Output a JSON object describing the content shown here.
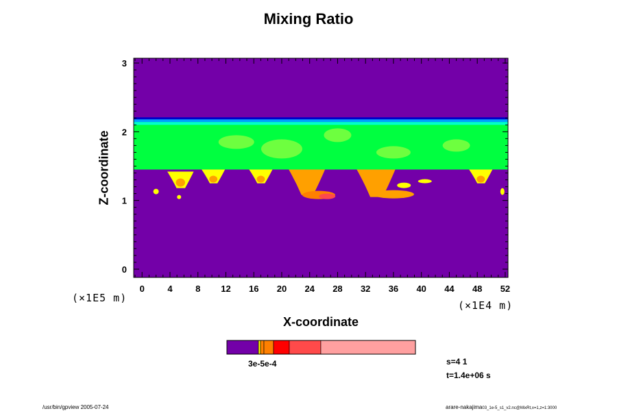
{
  "chart_data": {
    "type": "heatmap",
    "title": "Mixing Ratio",
    "xlabel": "X-coordinate",
    "ylabel": "Z-coordinate",
    "x_scale_note": "(×1E4 m)",
    "y_scale_note": "(×1E5 m)",
    "xlim": [
      -1.2,
      52.4
    ],
    "ylim": [
      -0.12,
      3.07
    ],
    "x_ticks": [
      0,
      4,
      8,
      12,
      16,
      20,
      24,
      28,
      32,
      36,
      40,
      44,
      48,
      52
    ],
    "y_ticks": [
      0,
      1,
      2,
      3
    ],
    "colorbar": {
      "label_text": "3e-5e-4",
      "colors": [
        "#7300a8",
        "#0000c8",
        "#00a0ff",
        "#00ff40",
        "#ffff00",
        "#ff8000",
        "#ff0000",
        "#ff4a4a",
        "#ffa0a0"
      ]
    },
    "fields": {
      "background": "#7300a8",
      "cloud_layer": {
        "z_bottom": 1.45,
        "z_top": 2.17,
        "color": "#00ff40"
      },
      "top_edge": {
        "z": 2.17,
        "colors": [
          "#0000c8",
          "#00a0ff",
          "#00ffcc"
        ]
      },
      "plumes": [
        {
          "x": 5.5,
          "z_top": 1.42,
          "z_bottom": 1.18,
          "color": "#ffff00"
        },
        {
          "x": 10.2,
          "z_top": 1.45,
          "z_bottom": 1.25,
          "color": "#ffff00"
        },
        {
          "x": 17.0,
          "z_top": 1.45,
          "z_bottom": 1.25,
          "color": "#ffff00"
        },
        {
          "x": 23.6,
          "z_top": 1.45,
          "z_bottom": 1.08,
          "color": "#ffa000"
        },
        {
          "x": 33.5,
          "z_top": 1.45,
          "z_bottom": 1.05,
          "color": "#ffa000"
        },
        {
          "x": 48.5,
          "z_top": 1.45,
          "z_bottom": 1.25,
          "color": "#ffff00"
        }
      ]
    }
  },
  "info": {
    "s_label": "s=4 1",
    "t_label": "t=1.4e+06 s"
  },
  "footer": {
    "left": "/usr/bin/gpview 2005-07-24",
    "right_main": "arare-nakajima",
    "right_small": "03_1e-5_s1_v2.nc@MixRt,x=1,z=1:3000"
  }
}
